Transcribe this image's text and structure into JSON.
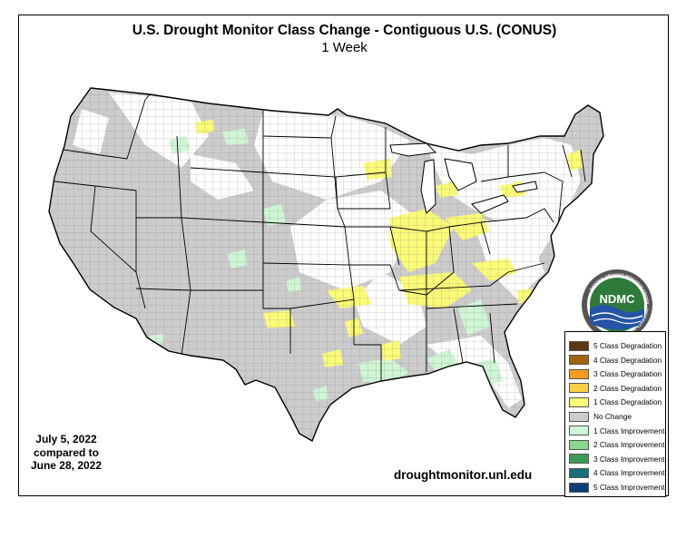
{
  "title": "U.S. Drought Monitor Class Change - Contiguous U.S. (CONUS)",
  "subtitle": "1 Week",
  "date_lines": [
    "July 5, 2022",
    "compared to",
    "June 28, 2022"
  ],
  "website": "droughtmonitor.unl.edu",
  "logo": {
    "text": "NDMC",
    "ring_text": "NATIONAL DROUGHT MITIGATION CENTER · UNIVERSITY OF NEBRASKA",
    "icon": "ndmc-logo-icon"
  },
  "legend": [
    {
      "label": "5 Class Degradation",
      "color": "#5a3a12"
    },
    {
      "label": "4 Class Degradation",
      "color": "#a0650a"
    },
    {
      "label": "3 Class Degradation",
      "color": "#f79a1e"
    },
    {
      "label": "2 Class Degradation",
      "color": "#fbcf4a"
    },
    {
      "label": "1 Class Degradation",
      "color": "#fbfb78"
    },
    {
      "label": "No Change",
      "color": "#cccccc"
    },
    {
      "label": "1 Class Improvement",
      "color": "#cff5d4"
    },
    {
      "label": "2 Class Improvement",
      "color": "#8bd68a"
    },
    {
      "label": "3 Class Improvement",
      "color": "#3a9a5a"
    },
    {
      "label": "4 Class Improvement",
      "color": "#17707a"
    },
    {
      "label": "5 Class Improvement",
      "color": "#0e3e78"
    }
  ]
}
